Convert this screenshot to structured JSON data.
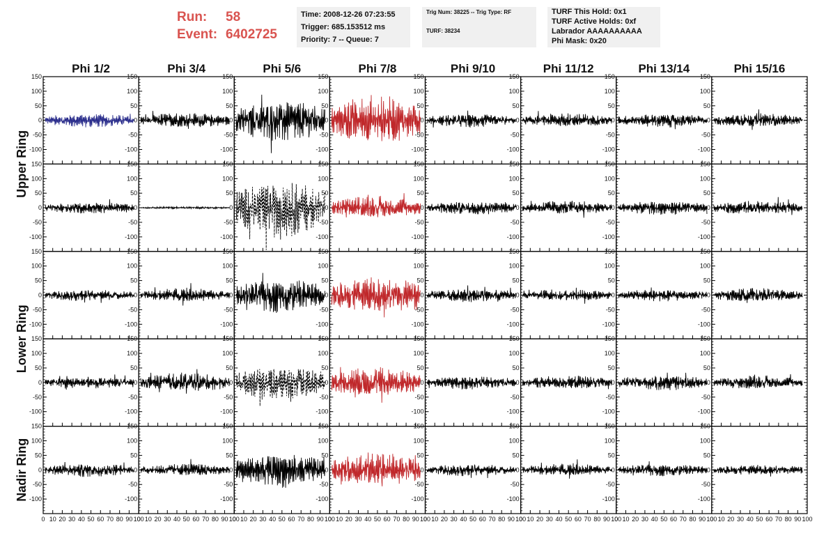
{
  "header": {
    "run_label": "Run:",
    "run_value": "58",
    "event_label": "Event:",
    "event_value": "6402725",
    "time": "Time: 2008-12-26 07:23:55",
    "trigger": "Trigger: 685.153512 ms",
    "priority": "Priority: 7 -- Queue: 7",
    "trig_num": "Trig Num: 38225 -- Trig Type: RF",
    "turf": "TURF: 38234",
    "turf_this_hold": "TURF This Hold: 0x1",
    "turf_active_holds": "TURF Active Holds: 0xf",
    "labrador": "Labrador AAAAAAAAAA",
    "phi_mask": "Phi Mask: 0x20"
  },
  "colors": {
    "blue": "#2b2e8c",
    "red": "#c0282b",
    "black": "#000000",
    "header_red": "#d9534f"
  },
  "chart_data": {
    "type": "line",
    "columns": [
      "Phi 1/2",
      "Phi 3/4",
      "Phi 5/6",
      "Phi 7/8",
      "Phi 9/10",
      "Phi 11/12",
      "Phi 13/14",
      "Phi 15/16"
    ],
    "ring_labels": [
      "Upper Ring",
      "Lower Ring",
      "Nadir Ring"
    ],
    "ylim": [
      -150,
      150
    ],
    "xlim": [
      0,
      100
    ],
    "yticks": [
      -100,
      -50,
      0,
      50,
      100,
      150
    ],
    "ytick_labels": [
      "-100",
      "-50",
      "0",
      "50",
      "100",
      "150"
    ],
    "xticks": [
      0,
      10,
      20,
      30,
      40,
      50,
      60,
      70,
      80,
      90,
      100
    ],
    "xtick_labels": [
      "0",
      "10",
      "20",
      "30",
      "40",
      "50",
      "60",
      "70",
      "80",
      "90",
      "100"
    ],
    "waveform_x_range": [
      2,
      95
    ],
    "rows": [
      {
        "amplitudes": [
          18,
          20,
          55,
          65,
          18,
          18,
          18,
          18
        ],
        "colors": [
          "blue",
          "black",
          "black",
          "red",
          "black",
          "black",
          "black",
          "black"
        ],
        "dashed": [
          false,
          false,
          false,
          false,
          false,
          false,
          false,
          false
        ]
      },
      {
        "amplitudes": [
          15,
          3,
          75,
          30,
          18,
          18,
          18,
          18
        ],
        "colors": [
          "black",
          "black",
          "black",
          "red",
          "black",
          "black",
          "black",
          "black"
        ],
        "dashed": [
          false,
          false,
          true,
          false,
          false,
          false,
          false,
          false
        ]
      },
      {
        "amplitudes": [
          15,
          18,
          45,
          50,
          18,
          16,
          16,
          18
        ],
        "colors": [
          "black",
          "black",
          "black",
          "red",
          "black",
          "black",
          "black",
          "black"
        ],
        "dashed": [
          false,
          false,
          false,
          false,
          false,
          false,
          false,
          false
        ]
      },
      {
        "amplitudes": [
          15,
          25,
          45,
          40,
          18,
          18,
          20,
          18
        ],
        "colors": [
          "black",
          "black",
          "black",
          "red",
          "black",
          "black",
          "black",
          "black"
        ],
        "dashed": [
          false,
          false,
          true,
          false,
          false,
          false,
          false,
          false
        ]
      },
      {
        "amplitudes": [
          18,
          16,
          45,
          45,
          16,
          16,
          16,
          14
        ],
        "colors": [
          "black",
          "black",
          "black",
          "red",
          "black",
          "black",
          "black",
          "black"
        ],
        "dashed": [
          false,
          false,
          false,
          false,
          false,
          false,
          false,
          false
        ]
      }
    ]
  }
}
